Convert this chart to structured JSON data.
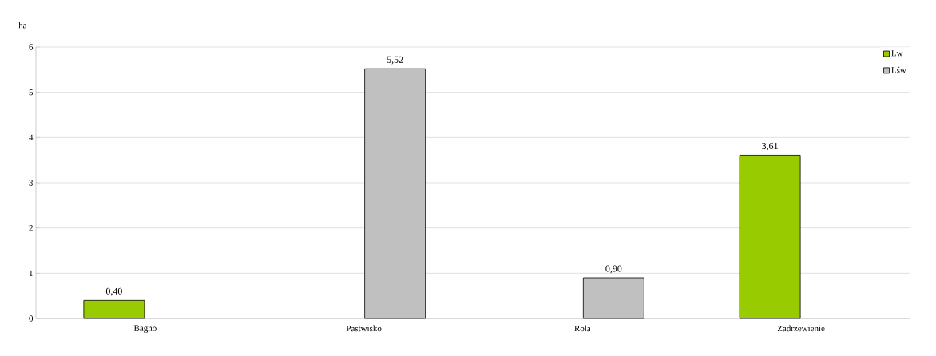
{
  "chart_data": {
    "type": "bar",
    "ylabel": "ha",
    "categories": [
      "Bagno",
      "Pastwisko",
      "Rola",
      "Zadrzewienie"
    ],
    "series": [
      {
        "name": "Lw",
        "color": "#99cc00",
        "values": [
          0.4,
          null,
          null,
          3.61
        ],
        "value_labels": [
          "0,40",
          null,
          null,
          "3,61"
        ]
      },
      {
        "name": "Lśw",
        "color": "#c0c0c0",
        "values": [
          null,
          5.52,
          0.9,
          null
        ],
        "value_labels": [
          null,
          "5,52",
          "0,90",
          null
        ]
      }
    ],
    "ylim": [
      0,
      6
    ],
    "yticks": [
      0,
      1,
      2,
      3,
      4,
      5,
      6
    ],
    "grid": "y",
    "legend": "top right"
  }
}
